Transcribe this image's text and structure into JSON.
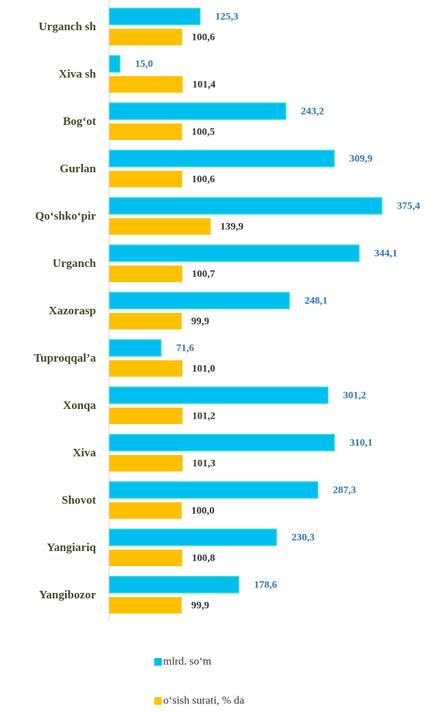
{
  "chart_data": {
    "type": "bar",
    "orientation": "horizontal",
    "categories": [
      "Urganch sh",
      "Xiva sh",
      "Bog‘ot",
      "Gurlan",
      "Qo‘shko‘pir",
      "Urganch",
      "Xazorasp",
      "Tuproqqal’a",
      "Xonqa",
      "Xiva",
      "Shovot",
      "Yangiariq",
      "Yangibozor"
    ],
    "series": [
      {
        "name": "mlrd. so‘m",
        "color": "#00bff0",
        "label_color": "#2e75b6",
        "values": [
          125.3,
          15.0,
          243.2,
          309.9,
          375.4,
          344.1,
          248.1,
          71.6,
          301.2,
          310.1,
          287.3,
          230.3,
          178.6
        ],
        "value_labels": [
          "125,3",
          "15,0",
          "243,2",
          "309,9",
          "375,4",
          "344,1",
          "248,1",
          "71,6",
          "301,2",
          "310,1",
          "287,3",
          "230,3",
          "178,6"
        ]
      },
      {
        "name": "o‘sish surati, % da",
        "color": "#ffc000",
        "label_color": "#333333",
        "values": [
          100.6,
          101.4,
          100.5,
          100.6,
          139.9,
          100.7,
          99.9,
          101.0,
          101.2,
          101.3,
          100.0,
          100.8,
          99.9
        ],
        "value_labels": [
          "100,6",
          "101,4",
          "100,5",
          "100,6",
          "139,9",
          "100,7",
          "99,9",
          "101,0",
          "101,2",
          "101,3",
          "100,0",
          "100,8",
          "99,9"
        ]
      }
    ],
    "xlim": [
      0,
      400
    ],
    "legend": "bottom"
  }
}
